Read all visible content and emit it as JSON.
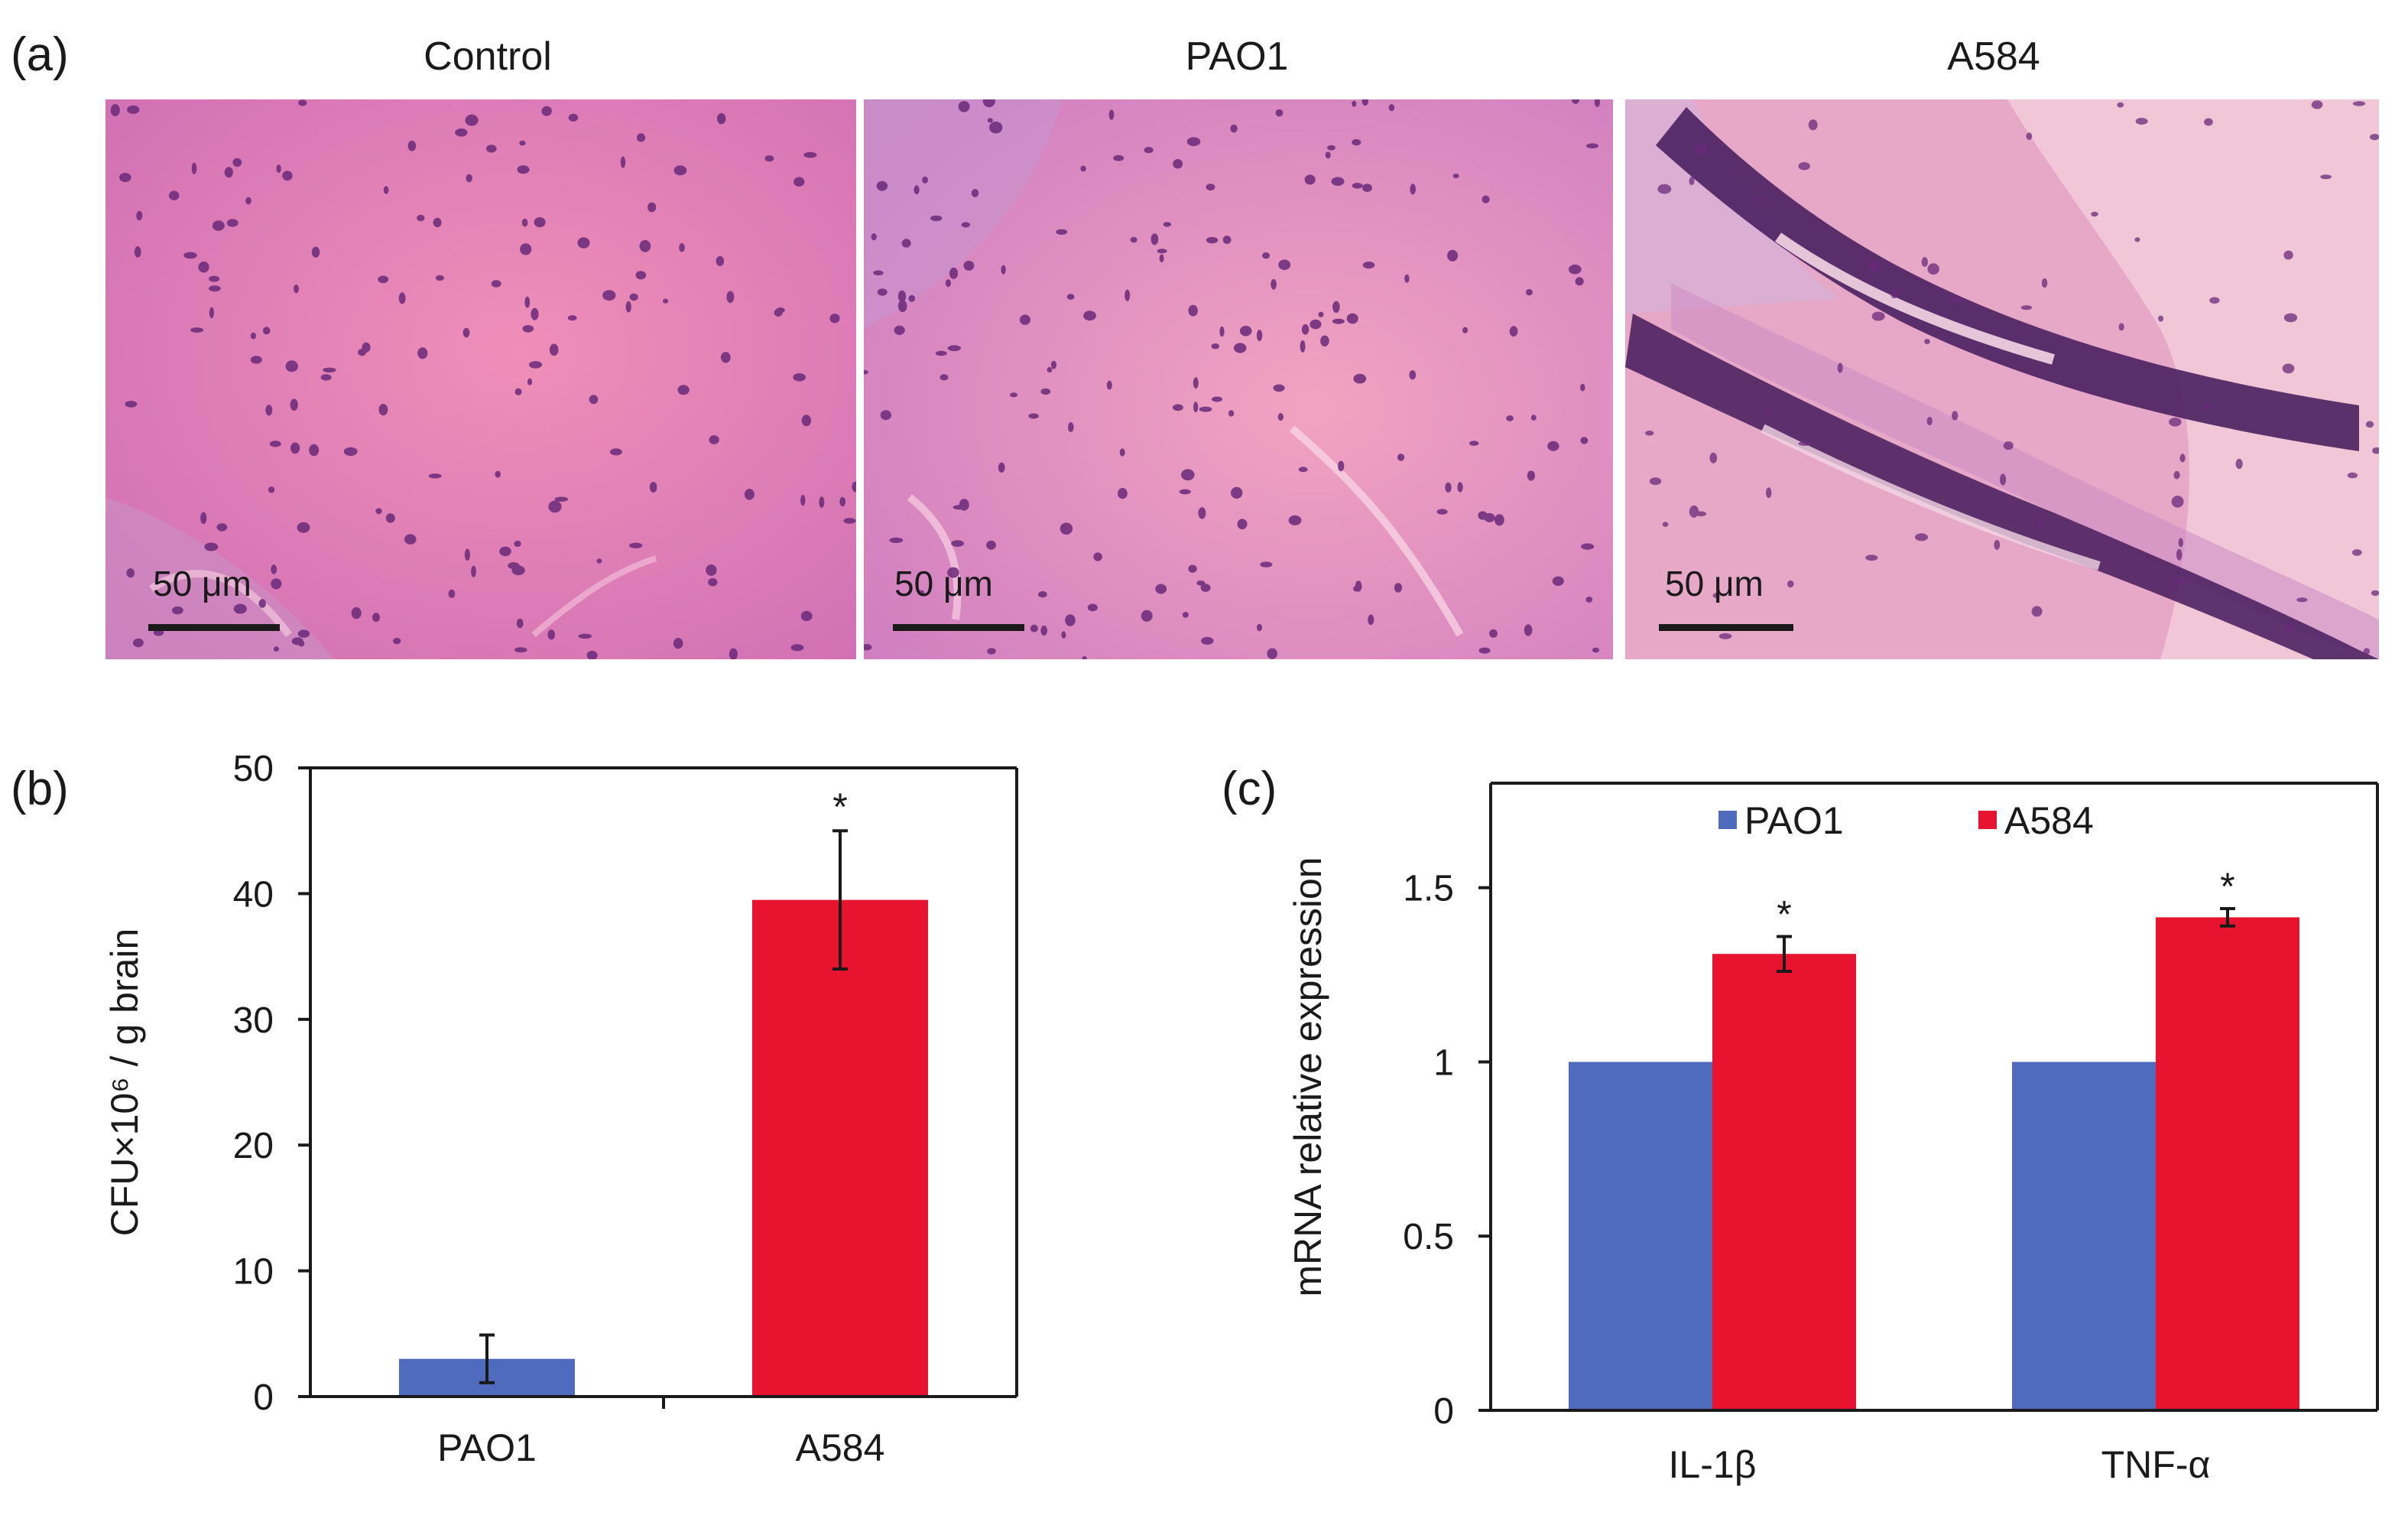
{
  "panel_a": {
    "label": "(a)",
    "images": [
      {
        "title": "Control",
        "scale_label": "50 μm"
      },
      {
        "title": "PAO1",
        "scale_label": "50 μm"
      },
      {
        "title": "A584",
        "scale_label": "50 μm"
      }
    ]
  },
  "panel_b": {
    "label": "(b)"
  },
  "panel_c": {
    "label": "(c)"
  },
  "colors": {
    "pao1": "#4f6bbd",
    "a584": "#e8132e",
    "axis": "#1a1a1a"
  },
  "chart_data": [
    {
      "type": "bar",
      "panel": "(b)",
      "categories": [
        "PAO1",
        "A584"
      ],
      "values": [
        3.0,
        39.5
      ],
      "errors": [
        1.9,
        5.5
      ],
      "significance": [
        "",
        "*"
      ],
      "bar_colors": [
        "#4f6bbd",
        "#e8132e"
      ],
      "ylabel": "CFU×10⁶ / g brain",
      "ylim": [
        0,
        50
      ],
      "yticks": [
        "0",
        "10",
        "20",
        "30",
        "40",
        "50"
      ],
      "grid": false,
      "legend": null
    },
    {
      "type": "bar",
      "panel": "(c)",
      "categories": [
        "IL-1β",
        "TNF-α"
      ],
      "series": [
        {
          "name": "PAO1",
          "values": [
            1.0,
            1.0
          ],
          "errors": [
            0,
            0
          ],
          "significance": [
            "",
            ""
          ],
          "color": "#4f6bbd"
        },
        {
          "name": "A584",
          "values": [
            1.31,
            1.415
          ],
          "errors": [
            0.05,
            0.025
          ],
          "significance": [
            "*",
            "*"
          ],
          "color": "#e8132e"
        }
      ],
      "ylabel": "mRNA relative expression",
      "ylim": [
        0,
        1.8
      ],
      "yticks": [
        "0",
        "0.5",
        "1",
        "1.5"
      ],
      "grid": false,
      "legend": "top-center"
    }
  ]
}
